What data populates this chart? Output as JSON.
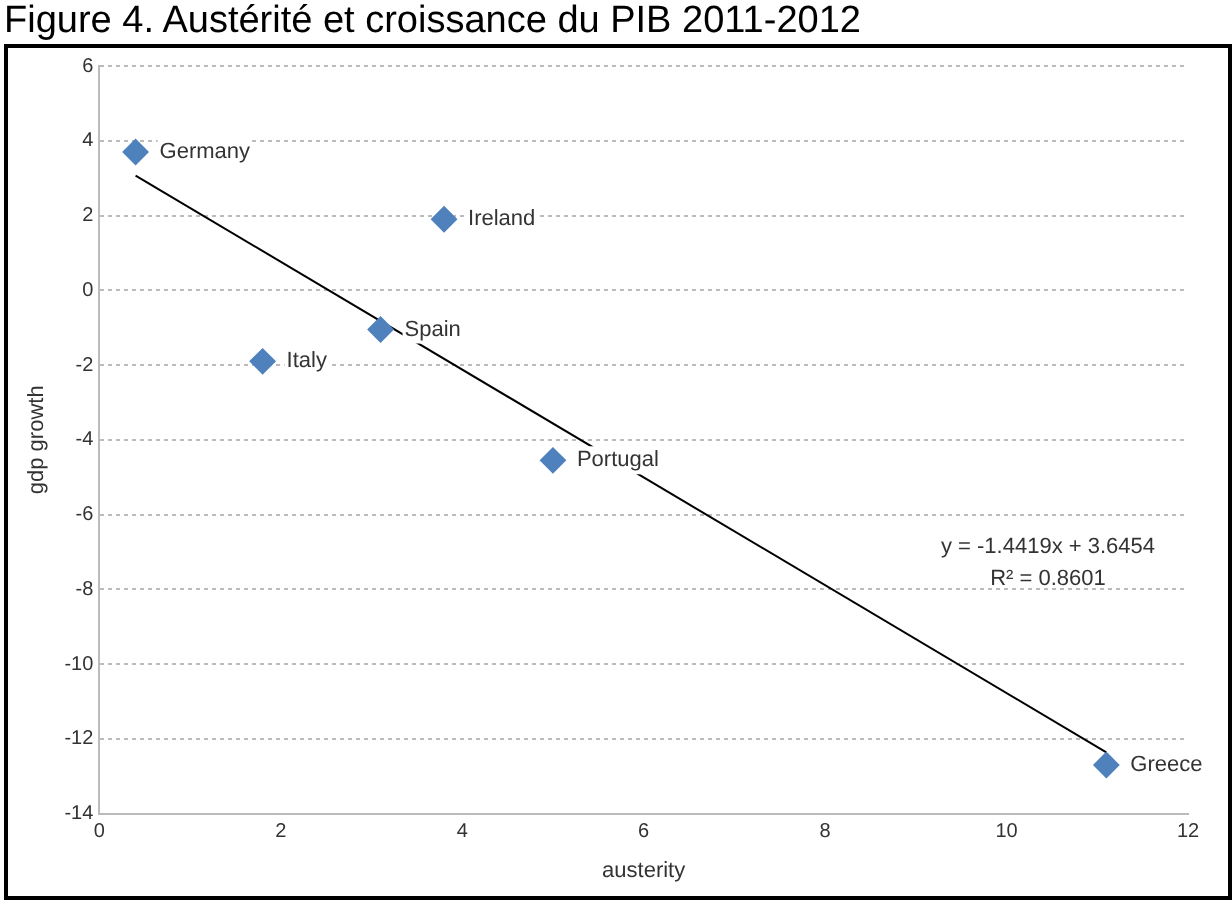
{
  "chart_data": {
    "type": "scatter",
    "title": "Figure 4. Austérité et croissance du PIB 2011-2012",
    "xlabel": "austerity",
    "ylabel": "gdp growth",
    "series": [
      {
        "color": "#4f81bd",
        "marker": "diamond",
        "x": [
          0.4,
          3.8,
          3.1,
          1.8,
          5.0,
          11.1
        ],
        "values": [
          3.7,
          1.9,
          -1.05,
          -1.9,
          -4.55,
          -12.7
        ]
      },
      {
        "type": "line",
        "marker": "none",
        "color": "#000000",
        "x": [
          0.4,
          11.1
        ],
        "values": [
          3.07,
          -12.36
        ]
      }
    ],
    "annotations": [
      {
        "text": "Germany",
        "x": 0.4,
        "y": 3.7
      },
      {
        "text": "Ireland",
        "x": 3.8,
        "y": 1.9
      },
      {
        "text": "Spain",
        "x": 3.1,
        "y": -1.05
      },
      {
        "text": "Italy",
        "x": 1.8,
        "y": -1.9
      },
      {
        "text": "Portugal",
        "x": 5.0,
        "y": -4.55
      },
      {
        "text": "Greece",
        "x": 11.1,
        "y": -12.7
      },
      "y = -1.4419x + 3.6454",
      "R² = 0.8601"
    ],
    "xlim": [
      0,
      12
    ],
    "xticks": [
      0,
      2,
      4,
      6,
      8,
      10,
      12
    ],
    "ylim": [
      -14,
      6
    ],
    "yticks": [
      -14,
      -12,
      -10,
      -8,
      -6,
      -4,
      -2,
      0,
      2,
      4,
      6
    ],
    "grid": "y",
    "legend": false
  }
}
